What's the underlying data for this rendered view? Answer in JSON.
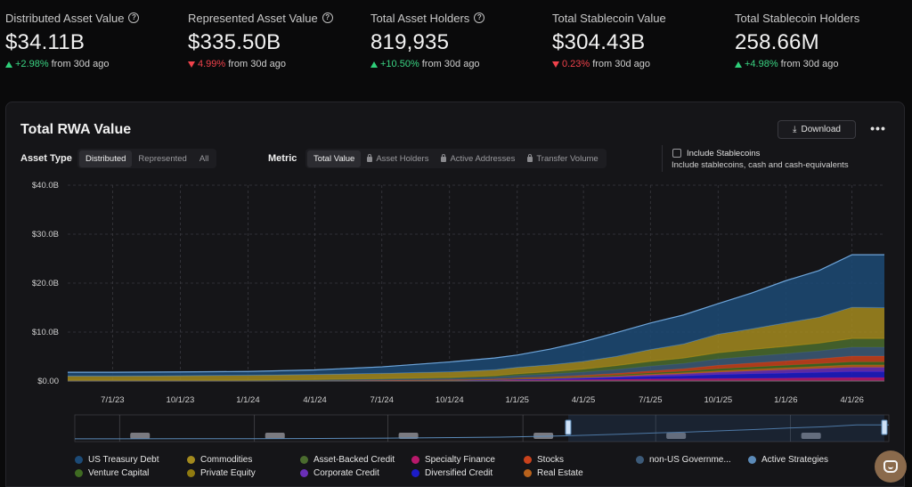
{
  "stats": [
    {
      "label": "Distributed Asset Value",
      "has_info": true,
      "value": "$34.11B",
      "direction": "up",
      "change": "+2.98%",
      "suffix": "from 30d ago"
    },
    {
      "label": "Represented Asset Value",
      "has_info": true,
      "value": "$335.50B",
      "direction": "down",
      "change": "4.99%",
      "suffix": "from 30d ago"
    },
    {
      "label": "Total Asset Holders",
      "has_info": true,
      "value": "819,935",
      "direction": "up",
      "change": "+10.50%",
      "suffix": "from 30d ago"
    },
    {
      "label": "Total Stablecoin Value",
      "has_info": false,
      "value": "$304.43B",
      "direction": "down",
      "change": "0.23%",
      "suffix": "from 30d ago"
    },
    {
      "label": "Total Stablecoin Holders",
      "has_info": false,
      "value": "258.66M",
      "direction": "up",
      "change": "+4.98%",
      "suffix": "from 30d ago"
    }
  ],
  "card": {
    "title": "Total RWA Value",
    "download_label": "Download",
    "more_label": "•••",
    "asset_type_label": "Asset Type",
    "asset_type_options": [
      "Distributed",
      "Represented",
      "All"
    ],
    "asset_type_selected": 0,
    "metric_label": "Metric",
    "metric_options": [
      {
        "label": "Total Value",
        "locked": false
      },
      {
        "label": "Asset Holders",
        "locked": true
      },
      {
        "label": "Active Addresses",
        "locked": true
      },
      {
        "label": "Transfer Volume",
        "locked": true
      }
    ],
    "metric_selected": 0,
    "include_stablecoins_label": "Include Stablecoins",
    "include_stablecoins_sub": "Include stablecoins, cash and cash-equivalents",
    "include_stablecoins_checked": false
  },
  "colors": {
    "us_treasury": "#1c4a76",
    "commodities": "#a38a1e",
    "abc": "#4a6b2e",
    "specialty": "#b8196b",
    "stocks": "#c9421c",
    "nonus": "#3c5a78",
    "active": "#5b8ab8",
    "vc": "#3f6b22",
    "pe": "#8f7a10",
    "corp": "#6a2fb8",
    "diversified": "#1c1cc9",
    "realestate": "#b8621c"
  },
  "chart_data": {
    "type": "area",
    "stacked": true,
    "y_ticks": [
      "$0.00",
      "$10.0B",
      "$20.0B",
      "$30.0B",
      "$40.0B"
    ],
    "ylim": [
      0,
      40
    ],
    "x_ticks": [
      "7/1/23",
      "10/1/23",
      "1/1/24",
      "4/1/24",
      "7/1/24",
      "10/1/24",
      "1/1/25",
      "4/1/25",
      "7/1/25",
      "10/1/25",
      "1/1/26",
      "4/1/26"
    ],
    "x": [
      "5/1/23",
      "7/1/23",
      "10/1/23",
      "1/1/24",
      "4/1/24",
      "7/1/24",
      "10/1/24",
      "12/1/24",
      "1/1/25",
      "2/15/25",
      "4/1/25",
      "5/15/25",
      "7/1/25",
      "8/15/25",
      "10/1/25",
      "11/15/25",
      "1/1/26",
      "2/15/26",
      "4/1/26",
      "5/15/26"
    ],
    "grid": true,
    "legend_position": "bottom",
    "series": [
      {
        "name": "Specialty Finance",
        "key": "specialty",
        "values": [
          0.05,
          0.05,
          0.05,
          0.05,
          0.05,
          0.08,
          0.1,
          0.15,
          0.2,
          0.25,
          0.3,
          0.35,
          0.4,
          0.45,
          0.5,
          0.55,
          0.6,
          0.65,
          0.7,
          0.7
        ]
      },
      {
        "name": "Diversified Credit",
        "key": "diversified",
        "values": [
          0.0,
          0.0,
          0.0,
          0.0,
          0.02,
          0.03,
          0.05,
          0.08,
          0.1,
          0.15,
          0.25,
          0.35,
          0.5,
          0.6,
          0.8,
          0.9,
          1.0,
          1.1,
          1.2,
          1.2
        ]
      },
      {
        "name": "Corporate Credit",
        "key": "corp",
        "values": [
          0.0,
          0.0,
          0.0,
          0.0,
          0.0,
          0.02,
          0.03,
          0.05,
          0.08,
          0.1,
          0.15,
          0.2,
          0.3,
          0.4,
          0.5,
          0.6,
          0.7,
          0.8,
          0.9,
          0.9
        ]
      },
      {
        "name": "Real Estate",
        "key": "realestate",
        "values": [
          0.0,
          0.0,
          0.0,
          0.0,
          0.0,
          0.0,
          0.02,
          0.03,
          0.05,
          0.08,
          0.1,
          0.15,
          0.2,
          0.25,
          0.3,
          0.35,
          0.4,
          0.45,
          0.5,
          0.5
        ]
      },
      {
        "name": "Venture Capital",
        "key": "vc",
        "values": [
          0.0,
          0.0,
          0.0,
          0.0,
          0.0,
          0.02,
          0.03,
          0.05,
          0.08,
          0.1,
          0.15,
          0.2,
          0.25,
          0.3,
          0.4,
          0.45,
          0.5,
          0.55,
          0.6,
          0.6
        ]
      },
      {
        "name": "Stocks",
        "key": "stocks",
        "values": [
          0.0,
          0.0,
          0.0,
          0.0,
          0.0,
          0.0,
          0.02,
          0.05,
          0.1,
          0.15,
          0.2,
          0.3,
          0.4,
          0.5,
          0.7,
          0.8,
          0.9,
          1.0,
          1.2,
          1.2
        ]
      },
      {
        "name": "non-US Government Debt",
        "key": "nonus",
        "values": [
          0.1,
          0.1,
          0.12,
          0.15,
          0.2,
          0.25,
          0.3,
          0.4,
          0.5,
          0.6,
          0.7,
          0.8,
          1.0,
          1.1,
          1.3,
          1.4,
          1.5,
          1.6,
          1.8,
          1.8
        ]
      },
      {
        "name": "Asset-Backed Credit",
        "key": "abc",
        "values": [
          0.0,
          0.0,
          0.0,
          0.0,
          0.05,
          0.1,
          0.2,
          0.3,
          0.4,
          0.5,
          0.6,
          0.8,
          1.0,
          1.1,
          1.3,
          1.4,
          1.5,
          1.6,
          1.8,
          1.8
        ]
      },
      {
        "name": "Private Equity",
        "key": "pe",
        "values": [
          0.0,
          0.0,
          0.0,
          0.0,
          0.0,
          0.0,
          0.0,
          0.0,
          0.0,
          0.0,
          0.0,
          0.0,
          0.0,
          0.0,
          0.0,
          0.0,
          0.0,
          0.0,
          0.0,
          0.0
        ]
      },
      {
        "name": "Commodities",
        "key": "commodities",
        "values": [
          0.9,
          0.9,
          0.95,
          1.0,
          1.05,
          1.1,
          1.15,
          1.2,
          1.3,
          1.4,
          1.6,
          1.9,
          2.4,
          2.9,
          3.8,
          4.2,
          4.8,
          5.3,
          6.4,
          6.3
        ]
      },
      {
        "name": "Active Strategies",
        "key": "active",
        "values": [
          0.0,
          0.0,
          0.0,
          0.0,
          0.0,
          0.0,
          0.0,
          0.0,
          0.0,
          0.0,
          0.0,
          0.0,
          0.0,
          0.0,
          0.0,
          0.0,
          0.0,
          0.0,
          0.0,
          0.0
        ]
      },
      {
        "name": "US Treasury Debt",
        "key": "us_treasury",
        "values": [
          0.75,
          0.75,
          0.75,
          0.75,
          0.9,
          1.3,
          2.0,
          2.4,
          2.5,
          3.2,
          4.0,
          4.8,
          5.4,
          5.9,
          6.2,
          7.3,
          8.6,
          9.5,
          10.7,
          10.8
        ]
      }
    ]
  },
  "legend": [
    {
      "name": "US Treasury Debt",
      "key": "us_treasury"
    },
    {
      "name": "Commodities",
      "key": "commodities"
    },
    {
      "name": "Asset-Backed Credit",
      "key": "abc"
    },
    {
      "name": "Specialty Finance",
      "key": "specialty"
    },
    {
      "name": "Stocks",
      "key": "stocks"
    },
    {
      "name": "non-US Governme...",
      "key": "nonus"
    },
    {
      "name": "Active Strategies",
      "key": "active"
    },
    {
      "name": "Venture Capital",
      "key": "vc"
    },
    {
      "name": "Private Equity",
      "key": "pe"
    },
    {
      "name": "Corporate Credit",
      "key": "corp"
    },
    {
      "name": "Diversified Credit",
      "key": "diversified"
    },
    {
      "name": "Real Estate",
      "key": "realestate"
    }
  ]
}
